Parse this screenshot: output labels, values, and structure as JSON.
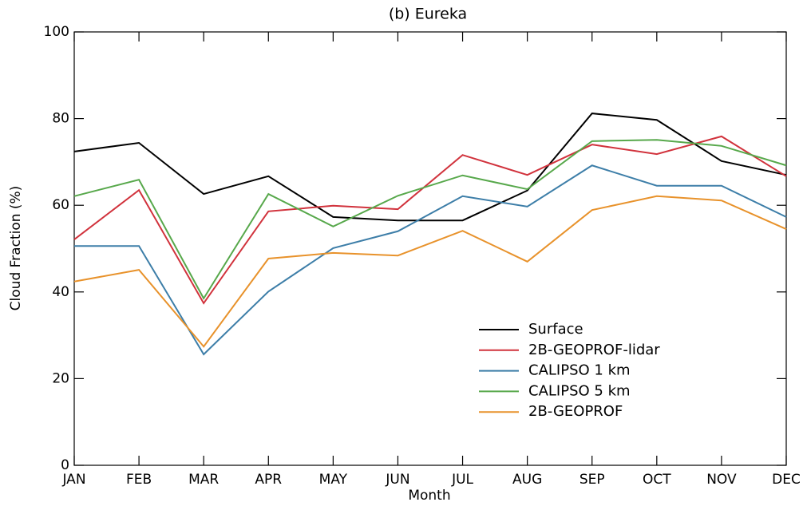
{
  "chart_data": {
    "type": "line",
    "title": "(b) Eureka",
    "x_label": "Month",
    "y_label": "Cloud Fraction (%)",
    "categories": [
      "JAN",
      "FEB",
      "MAR",
      "APR",
      "MAY",
      "JUN",
      "JUL",
      "AUG",
      "SEP",
      "OCT",
      "NOV",
      "DEC"
    ],
    "series": [
      {
        "name": "Surface",
        "color": "#000000",
        "values": [
          72.4,
          74.4,
          62.6,
          66.7,
          57.3,
          56.5,
          56.5,
          63.4,
          81.2,
          79.7,
          70.2,
          67.0
        ]
      },
      {
        "name": "2B-GEOPROF-lidar",
        "color": "#d1323c",
        "values": [
          52.1,
          63.5,
          37.4,
          58.6,
          59.9,
          59.1,
          71.6,
          67.0,
          74.0,
          71.8,
          75.9,
          66.7
        ]
      },
      {
        "name": "CALIPSO 1 km",
        "color": "#3d7ea8",
        "values": [
          50.6,
          50.6,
          25.6,
          40.1,
          50.1,
          54.0,
          62.1,
          59.7,
          69.2,
          64.5,
          64.5,
          57.3
        ]
      },
      {
        "name": "CALIPSO 5 km",
        "color": "#57a84b",
        "values": [
          62.1,
          65.9,
          38.5,
          62.6,
          55.1,
          62.2,
          66.9,
          63.7,
          74.8,
          75.1,
          73.7,
          69.2
        ]
      },
      {
        "name": "2B-GEOPROF",
        "color": "#e8922b",
        "values": [
          42.4,
          45.1,
          27.4,
          47.7,
          49.0,
          48.4,
          54.1,
          47.0,
          58.9,
          62.1,
          61.1,
          54.5
        ]
      }
    ],
    "ylim": [
      0,
      100
    ],
    "yticks": [
      0,
      20,
      40,
      60,
      80,
      100
    ],
    "grid": false,
    "legend": "lower right"
  }
}
